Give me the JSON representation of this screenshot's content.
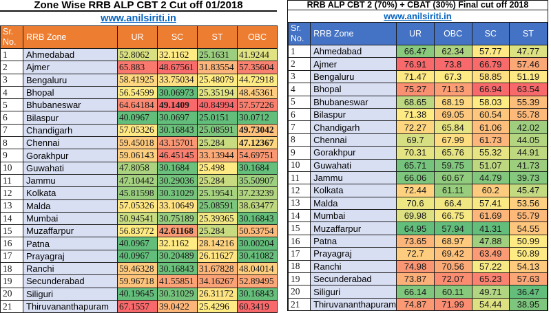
{
  "colors": {
    "left_header_bg": "#ED7D31",
    "right_header_bg": "#4472C4",
    "zone_cell_bg": "#D9DFF3",
    "link_color": "#0563C1",
    "border": "#1b1b1b"
  },
  "heatmap": {
    "low": "#63BE7B",
    "mid": "#FFEB84",
    "high": "#F8696B"
  },
  "left_table": {
    "title": "Zone Wise RRB ALP CBT 2 Cut off 01/2018",
    "link": "www.anilsiriti.in",
    "sr_header": "Sr. No.",
    "zone_header": "RRB Zone",
    "value_headers": [
      "UR",
      "SC",
      "ST",
      "OBC"
    ],
    "bold_cells": [
      {
        "sr": 5,
        "col": "SC"
      },
      {
        "sr": 7,
        "col": "OBC"
      },
      {
        "sr": 8,
        "col": "OBC"
      },
      {
        "sr": 15,
        "col": "SC"
      }
    ],
    "rows": [
      {
        "sr": "1",
        "zone": "Ahmedabad",
        "values": [
          "52.8062",
          "32.1162",
          "25.1631",
          "41.9244"
        ]
      },
      {
        "sr": "2",
        "zone": "Ajmer",
        "values": [
          "65.883",
          "48.67561",
          "31.83554",
          "57.35604"
        ]
      },
      {
        "sr": "3",
        "zone": "Bengaluru",
        "values": [
          "58.41925",
          "33.75034",
          "25.48079",
          "44.72918"
        ]
      },
      {
        "sr": "4",
        "zone": "Bhopal",
        "values": [
          "56.54599",
          "30.06973",
          "25.35194",
          "48.45361"
        ]
      },
      {
        "sr": "5",
        "zone": "Bhubaneswar",
        "values": [
          "64.64184",
          "49.1409",
          "40.84994",
          "57.57226"
        ]
      },
      {
        "sr": "6",
        "zone": "Bilaspur",
        "values": [
          "40.0967",
          "30.0697",
          "25.0151",
          "30.0712"
        ]
      },
      {
        "sr": "7",
        "zone": "Chandigarh",
        "values": [
          "57.05326",
          "30.16843",
          "25.08591",
          "49.73042"
        ]
      },
      {
        "sr": "8",
        "zone": "Chennai",
        "values": [
          "59.45018",
          "43.15701",
          "25.284",
          "47.12367"
        ]
      },
      {
        "sr": "9",
        "zone": "Gorakhpur",
        "values": [
          "59.06143",
          "46.45145",
          "33.13944",
          "54.69751"
        ]
      },
      {
        "sr": "10",
        "zone": "Guwahati",
        "values": [
          "47.8058",
          "30.1684",
          "25.498",
          "30.1684"
        ]
      },
      {
        "sr": "11",
        "zone": "Jammu",
        "values": [
          "47.10442",
          "30.29036",
          "25.284",
          "35.50907"
        ]
      },
      {
        "sr": "12",
        "zone": "Kolkata",
        "values": [
          "45.81598",
          "30.31029",
          "25.19541",
          "37.23239"
        ]
      },
      {
        "sr": "13",
        "zone": "Malda",
        "values": [
          "57.05326",
          "33.10649",
          "25.08591",
          "38.63477"
        ]
      },
      {
        "sr": "14",
        "zone": "Mumbai",
        "values": [
          "50.94541",
          "30.75189",
          "25.39365",
          "30.16843"
        ]
      },
      {
        "sr": "15",
        "zone": "Muzaffarpur",
        "values": [
          "56.83772",
          "42.61168",
          "25.284",
          "50.53754"
        ]
      },
      {
        "sr": "16",
        "zone": "Patna",
        "values": [
          "40.0967",
          "32.1162",
          "28.14216",
          "30.00204"
        ]
      },
      {
        "sr": "17",
        "zone": "Prayagraj",
        "values": [
          "40.0967",
          "30.20489",
          "26.11627",
          "30.41082"
        ]
      },
      {
        "sr": "18",
        "zone": "Ranchi",
        "values": [
          "59.46328",
          "30.16843",
          "31.67828",
          "48.04014"
        ]
      },
      {
        "sr": "19",
        "zone": "Secunderabad",
        "values": [
          "59.96718",
          "41.55851",
          "34.16267",
          "52.89495"
        ]
      },
      {
        "sr": "20",
        "zone": "Siliguri",
        "values": [
          "40.19645",
          "30.31029",
          "26.31172",
          "30.16843"
        ]
      },
      {
        "sr": "21",
        "zone": "Thiruvananthapuram",
        "values": [
          "67.1557",
          "39.0422",
          "25.4296",
          "60.3419"
        ]
      }
    ]
  },
  "right_table": {
    "title": "RRB ALP CBT 2 (70%) + CBAT (30%) Final cut off 2018",
    "link": "www.anilsiriti.in",
    "sr_header": "Sr. No.",
    "zone_header": "RRB Zone",
    "value_headers": [
      "UR",
      "OBC",
      "SC",
      "ST"
    ],
    "bold_cells": [],
    "rows": [
      {
        "sr": "1",
        "zone": "Ahmedabad",
        "values": [
          "66.47",
          "62.34",
          "57.77",
          "47.77"
        ]
      },
      {
        "sr": "2",
        "zone": "Ajmer",
        "values": [
          "76.91",
          "73.8",
          "66.79",
          "57.46"
        ]
      },
      {
        "sr": "3",
        "zone": "Bengaluru",
        "values": [
          "71.47",
          "67.3",
          "58.85",
          "51.19"
        ]
      },
      {
        "sr": "4",
        "zone": "Bhopal",
        "values": [
          "75.27",
          "71.13",
          "66.94",
          "63.54"
        ]
      },
      {
        "sr": "5",
        "zone": "Bhubaneswar",
        "values": [
          "68.65",
          "68.19",
          "58.03",
          "55.39"
        ]
      },
      {
        "sr": "6",
        "zone": "Bilaspur",
        "values": [
          "71.38",
          "69.05",
          "60.54",
          "55.78"
        ]
      },
      {
        "sr": "7",
        "zone": "Chandigarh",
        "values": [
          "72.27",
          "65.84",
          "61.06",
          "42.02"
        ]
      },
      {
        "sr": "8",
        "zone": "Chennai",
        "values": [
          "69.7",
          "67.99",
          "61.73",
          "44.05"
        ]
      },
      {
        "sr": "9",
        "zone": "Gorakhpur",
        "values": [
          "70.31",
          "65.76",
          "55.32",
          "44.91"
        ]
      },
      {
        "sr": "10",
        "zone": "Guwahati",
        "values": [
          "65.71",
          "59.75",
          "51.07",
          "41.73"
        ]
      },
      {
        "sr": "11",
        "zone": "Jammu",
        "values": [
          "66.06",
          "60.67",
          "44.79",
          "39.73"
        ]
      },
      {
        "sr": "12",
        "zone": "Kolkata",
        "values": [
          "72.44",
          "61.11",
          "60.2",
          "45.47"
        ]
      },
      {
        "sr": "13",
        "zone": "Malda",
        "values": [
          "70.6",
          "66.4",
          "57.41",
          "53.56"
        ]
      },
      {
        "sr": "14",
        "zone": "Mumbai",
        "values": [
          "69.98",
          "66.75",
          "61.69",
          "55.79"
        ]
      },
      {
        "sr": "15",
        "zone": "Muzaffarpur",
        "values": [
          "64.95",
          "57.94",
          "41.31",
          "54.55"
        ]
      },
      {
        "sr": "16",
        "zone": "Patna",
        "values": [
          "73.65",
          "68.97",
          "47.88",
          "50.99"
        ]
      },
      {
        "sr": "17",
        "zone": "Prayagraj",
        "values": [
          "72.7",
          "69.42",
          "63.49",
          "50.89"
        ]
      },
      {
        "sr": "18",
        "zone": "Ranchi",
        "values": [
          "74.98",
          "70.56",
          "57.22",
          "54.13"
        ]
      },
      {
        "sr": "19",
        "zone": "Secunderabad",
        "values": [
          "73.87",
          "72.07",
          "65.23",
          "57.63"
        ]
      },
      {
        "sr": "20",
        "zone": "Siliguri",
        "values": [
          "66.14",
          "60.11",
          "49.71",
          "36.47"
        ]
      },
      {
        "sr": "21",
        "zone": "Thiruvananthapuram",
        "values": [
          "74.87",
          "71.99",
          "54.44",
          "38.95"
        ]
      }
    ]
  }
}
